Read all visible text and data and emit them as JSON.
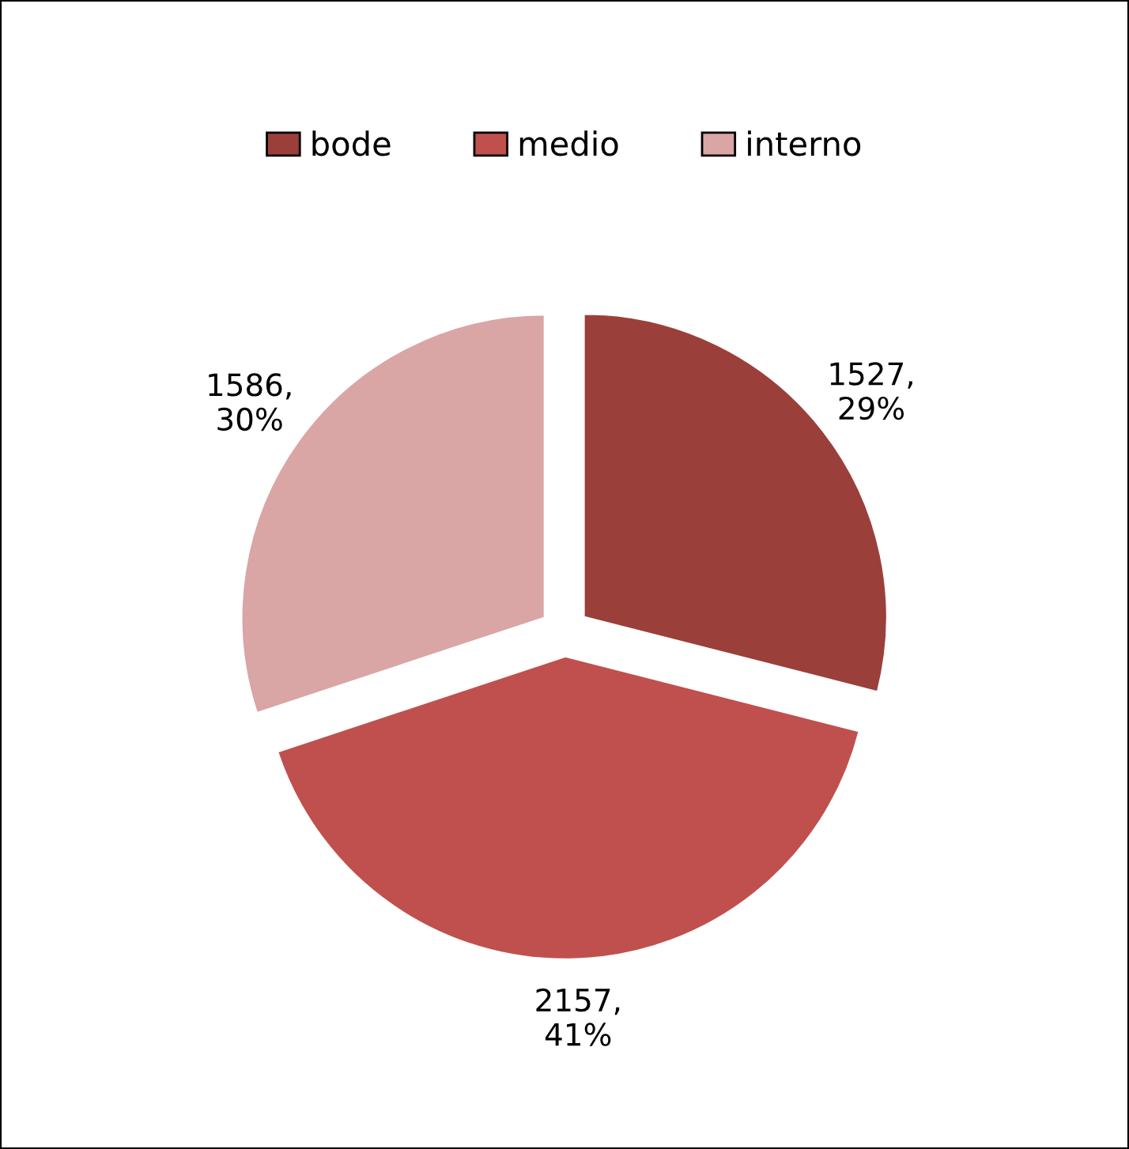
{
  "chart_data": {
    "type": "pie",
    "categories": [
      "bode",
      "medio",
      "interno"
    ],
    "values": [
      1527,
      2157,
      1586
    ],
    "colors": [
      "#9b3f3b",
      "#c0504d",
      "#d9a5a5"
    ],
    "value_labels": [
      "1527,\n29%",
      "2157,\n41%",
      "1586,\n30%"
    ],
    "legend": "top"
  }
}
